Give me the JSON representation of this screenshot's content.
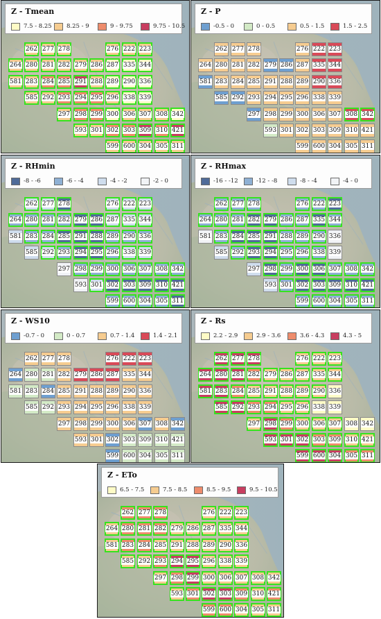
{
  "cells": [
    "262",
    "277",
    "278",
    "276",
    "222",
    "223",
    "264",
    "280",
    "281",
    "282",
    "279",
    "286",
    "287",
    "335",
    "344",
    "581",
    "283",
    "284",
    "285",
    "291",
    "288",
    "289",
    "290",
    "336",
    "585",
    "292",
    "293",
    "294",
    "295",
    "296",
    "338",
    "339",
    "297",
    "298",
    "299",
    "300",
    "306",
    "307",
    "308",
    "342",
    "593",
    "301",
    "302",
    "303",
    "309",
    "310",
    "421",
    "599",
    "600",
    "304",
    "305",
    "311"
  ],
  "panels": [
    {
      "title": "Z - Tmean",
      "legend": [
        {
          "label": "7.5 - 8.25",
          "color": "#fefbc6"
        },
        {
          "label": "8.25 - 9",
          "color": "#f6cc90"
        },
        {
          "label": "9 - 9.75",
          "color": "#ee8c6c"
        },
        {
          "label": "9.75 - 10.5",
          "color": "#c83e60"
        }
      ],
      "classes": [
        1,
        1,
        1,
        1,
        1,
        1,
        1,
        1,
        1,
        1,
        1,
        1,
        0,
        0,
        0,
        1,
        1,
        2,
        2,
        3,
        1,
        0,
        0,
        0,
        1,
        1,
        2,
        2,
        2,
        1,
        0,
        0,
        1,
        2,
        2,
        0,
        1,
        1,
        1,
        0,
        1,
        1,
        2,
        2,
        3,
        2,
        3,
        1,
        1,
        1,
        1,
        1
      ],
      "highlighted": [
        1,
        1,
        1,
        1,
        1,
        1,
        1,
        1,
        1,
        1,
        1,
        1,
        1,
        1,
        1,
        1,
        1,
        1,
        1,
        1,
        1,
        1,
        1,
        1,
        1,
        1,
        1,
        1,
        1,
        1,
        1,
        1,
        1,
        1,
        1,
        1,
        1,
        1,
        1,
        1,
        1,
        1,
        1,
        1,
        1,
        1,
        1,
        1,
        1,
        1,
        1,
        1
      ]
    },
    {
      "title": "Z - P",
      "legend": [
        {
          "label": "-0.5 - 0",
          "color": "#6e9fd0"
        },
        {
          "label": "0 - 0.5",
          "color": "#d3eac6"
        },
        {
          "label": "0.5 - 1.5",
          "color": "#f6cc90"
        },
        {
          "label": "1.5 - 2.5",
          "color": "#d94a58"
        }
      ],
      "classes": [
        2,
        2,
        2,
        2,
        3,
        3,
        2,
        2,
        2,
        2,
        0,
        0,
        2,
        3,
        3,
        0,
        2,
        2,
        2,
        2,
        2,
        2,
        3,
        3,
        0,
        0,
        2,
        2,
        2,
        2,
        2,
        2,
        0,
        2,
        2,
        2,
        2,
        2,
        3,
        3,
        1,
        2,
        2,
        2,
        2,
        2,
        2,
        2,
        2,
        2,
        2,
        2
      ],
      "highlighted": [
        0,
        0,
        0,
        0,
        0,
        0,
        0,
        0,
        0,
        0,
        0,
        0,
        0,
        0,
        0,
        0,
        0,
        0,
        0,
        0,
        0,
        0,
        0,
        0,
        0,
        0,
        0,
        0,
        0,
        0,
        0,
        0,
        0,
        0,
        0,
        0,
        0,
        0,
        1,
        1,
        0,
        0,
        0,
        0,
        0,
        0,
        0,
        0,
        0,
        0,
        0,
        0
      ]
    },
    {
      "title": "Z - RHmin",
      "legend": [
        {
          "label": "-8 - -6",
          "color": "#4f6b99"
        },
        {
          "label": "-6 - -4",
          "color": "#8eb0d4"
        },
        {
          "label": "-4 - -2",
          "color": "#cfdded"
        },
        {
          "label": "-2 - 0",
          "color": "#f1f3f6"
        }
      ],
      "classes": [
        2,
        2,
        0,
        2,
        2,
        2,
        1,
        1,
        1,
        1,
        0,
        0,
        2,
        2,
        2,
        2,
        1,
        1,
        0,
        0,
        0,
        1,
        1,
        1,
        2,
        2,
        1,
        0,
        0,
        1,
        2,
        2,
        3,
        1,
        1,
        1,
        1,
        1,
        1,
        1,
        3,
        2,
        0,
        0,
        0,
        0,
        0,
        1,
        1,
        1,
        1,
        0
      ],
      "highlighted": [
        1,
        1,
        1,
        1,
        1,
        1,
        1,
        1,
        1,
        1,
        1,
        1,
        1,
        1,
        1,
        0,
        1,
        1,
        1,
        1,
        1,
        1,
        1,
        1,
        0,
        1,
        1,
        1,
        1,
        1,
        1,
        1,
        0,
        1,
        1,
        1,
        1,
        1,
        1,
        1,
        0,
        1,
        1,
        1,
        1,
        1,
        1,
        1,
        1,
        1,
        1,
        1
      ]
    },
    {
      "title": "Z - RHmax",
      "legend": [
        {
          "label": "-16 - -12",
          "color": "#4f6b99"
        },
        {
          "label": "-12 - -8",
          "color": "#8eb0d4"
        },
        {
          "label": "-8 - -4",
          "color": "#cfdded"
        },
        {
          "label": "-4 - 0",
          "color": "#f1f3f6"
        }
      ],
      "classes": [
        1,
        1,
        1,
        1,
        1,
        0,
        1,
        1,
        1,
        0,
        0,
        1,
        1,
        0,
        1,
        3,
        1,
        0,
        0,
        0,
        1,
        1,
        1,
        3,
        2,
        1,
        0,
        0,
        1,
        1,
        1,
        3,
        2,
        0,
        1,
        0,
        0,
        1,
        1,
        1,
        2,
        1,
        0,
        0,
        0,
        0,
        0,
        1,
        1,
        1,
        1,
        1
      ],
      "highlighted": [
        1,
        1,
        1,
        1,
        1,
        1,
        1,
        1,
        1,
        1,
        1,
        1,
        1,
        1,
        1,
        0,
        1,
        1,
        1,
        1,
        1,
        1,
        1,
        0,
        0,
        1,
        1,
        1,
        1,
        1,
        1,
        0,
        0,
        1,
        1,
        1,
        1,
        1,
        1,
        1,
        0,
        1,
        1,
        1,
        1,
        1,
        1,
        1,
        1,
        1,
        1,
        1
      ]
    },
    {
      "title": "Z - WS10",
      "legend": [
        {
          "label": "-0.7 - 0",
          "color": "#6e9fd0"
        },
        {
          "label": "0 - 0.7",
          "color": "#d3eac6"
        },
        {
          "label": "0.7 - 1.4",
          "color": "#f6cc90"
        },
        {
          "label": "1.4 - 2.1",
          "color": "#d94a58"
        }
      ],
      "classes": [
        2,
        2,
        2,
        3,
        3,
        3,
        0,
        1,
        1,
        2,
        3,
        3,
        3,
        2,
        2,
        1,
        1,
        0,
        2,
        2,
        2,
        2,
        2,
        2,
        1,
        1,
        2,
        2,
        2,
        2,
        2,
        2,
        2,
        2,
        2,
        2,
        2,
        0,
        2,
        0,
        2,
        2,
        0,
        1,
        1,
        1,
        1,
        0,
        1,
        1,
        1,
        1
      ],
      "highlighted": [
        0,
        0,
        0,
        0,
        0,
        0,
        0,
        0,
        0,
        0,
        0,
        0,
        0,
        0,
        0,
        0,
        0,
        0,
        0,
        0,
        0,
        0,
        0,
        0,
        0,
        0,
        0,
        0,
        0,
        0,
        0,
        0,
        0,
        0,
        0,
        0,
        0,
        0,
        0,
        0,
        0,
        0,
        0,
        0,
        0,
        0,
        0,
        0,
        0,
        0,
        0,
        0
      ]
    },
    {
      "title": "Z - Rs",
      "legend": [
        {
          "label": "2.2 - 2.9",
          "color": "#fefbc6"
        },
        {
          "label": "2.9 - 3.6",
          "color": "#f6cc90"
        },
        {
          "label": "3.6 - 4.3",
          "color": "#ee8c6c"
        },
        {
          "label": "4.3 - 5",
          "color": "#c83e60"
        }
      ],
      "classes": [
        3,
        3,
        3,
        1,
        1,
        1,
        3,
        3,
        3,
        2,
        1,
        1,
        1,
        1,
        1,
        3,
        3,
        2,
        1,
        1,
        1,
        1,
        1,
        0,
        3,
        3,
        2,
        2,
        1,
        1,
        0,
        0,
        1,
        3,
        2,
        1,
        1,
        1,
        0,
        0,
        3,
        3,
        3,
        2,
        2,
        1,
        1,
        3,
        3,
        3,
        2,
        2
      ],
      "highlighted": [
        1,
        1,
        1,
        1,
        1,
        1,
        1,
        1,
        1,
        1,
        1,
        1,
        1,
        1,
        1,
        1,
        1,
        1,
        1,
        1,
        1,
        1,
        1,
        0,
        1,
        1,
        1,
        1,
        1,
        1,
        0,
        0,
        1,
        1,
        1,
        1,
        1,
        1,
        0,
        0,
        1,
        1,
        1,
        1,
        1,
        1,
        1,
        1,
        1,
        1,
        1,
        1
      ]
    },
    {
      "title": "Z - ETo",
      "legend": [
        {
          "label": "6.5 - 7.5",
          "color": "#fefbc6"
        },
        {
          "label": "7.5 - 8.5",
          "color": "#f6cc90"
        },
        {
          "label": "8.5 - 9.5",
          "color": "#ee8c6c"
        },
        {
          "label": "9.5 - 10.5",
          "color": "#c83e60"
        }
      ],
      "classes": [
        2,
        2,
        2,
        1,
        1,
        1,
        1,
        2,
        2,
        2,
        1,
        1,
        1,
        1,
        1,
        1,
        2,
        2,
        1,
        1,
        1,
        1,
        1,
        1,
        1,
        1,
        2,
        3,
        3,
        1,
        1,
        1,
        1,
        2,
        3,
        1,
        1,
        1,
        1,
        1,
        1,
        2,
        3,
        3,
        2,
        1,
        2,
        2,
        2,
        1,
        1,
        1
      ],
      "highlighted": [
        1,
        1,
        1,
        1,
        1,
        1,
        1,
        1,
        1,
        1,
        1,
        1,
        1,
        1,
        1,
        1,
        1,
        1,
        1,
        1,
        1,
        1,
        1,
        1,
        1,
        1,
        1,
        1,
        1,
        1,
        1,
        1,
        1,
        1,
        1,
        1,
        1,
        1,
        1,
        1,
        1,
        1,
        1,
        1,
        1,
        1,
        1,
        1,
        1,
        1,
        1,
        1
      ]
    }
  ]
}
